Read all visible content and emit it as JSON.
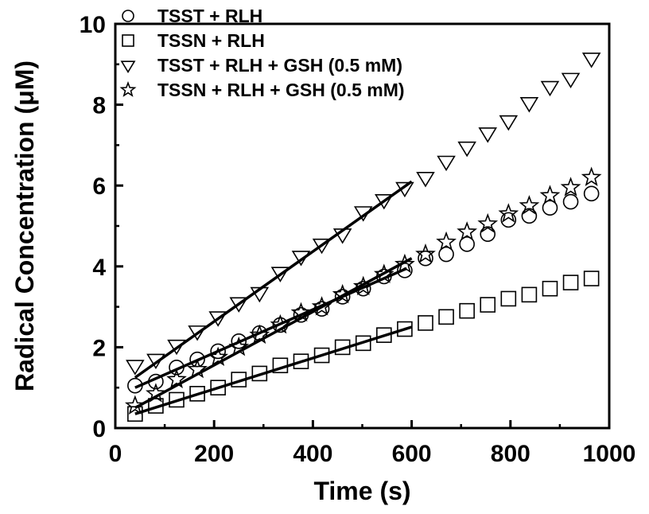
{
  "chart_data": {
    "type": "scatter",
    "title": "",
    "xlabel": "Time (s)",
    "ylabel": "Radical Concentration (μM)",
    "xlim": [
      0,
      1000
    ],
    "ylim": [
      0,
      10
    ],
    "xticks": [
      "0",
      "200",
      "400",
      "600",
      "800",
      "1000"
    ],
    "yticks": [
      "0",
      "2",
      "4",
      "6",
      "8",
      "10"
    ],
    "grid": false,
    "legend_position": "top-left",
    "x": [
      40,
      82,
      124,
      166,
      208,
      250,
      292,
      334,
      376,
      418,
      460,
      502,
      544,
      586,
      628,
      670,
      712,
      754,
      796,
      838,
      880,
      922,
      964
    ],
    "series": [
      {
        "name": "TSST + RLH",
        "marker": "circle",
        "values": [
          1.05,
          1.15,
          1.5,
          1.7,
          1.9,
          2.15,
          2.35,
          2.55,
          2.8,
          2.95,
          3.25,
          3.45,
          3.75,
          3.9,
          4.2,
          4.3,
          4.55,
          4.8,
          5.15,
          5.25,
          5.45,
          5.6,
          5.8
        ],
        "fit": {
          "x": [
            40,
            590
          ],
          "y": [
            1.0,
            3.95
          ]
        }
      },
      {
        "name": "TSSN + RLH",
        "marker": "square",
        "values": [
          0.35,
          0.55,
          0.7,
          0.85,
          1.0,
          1.2,
          1.35,
          1.55,
          1.65,
          1.8,
          2.0,
          2.1,
          2.3,
          2.45,
          2.6,
          2.75,
          2.9,
          3.05,
          3.2,
          3.3,
          3.45,
          3.6,
          3.7
        ],
        "fit": {
          "x": [
            40,
            600
          ],
          "y": [
            0.35,
            2.5
          ]
        }
      },
      {
        "name": "TSST + RLH + GSH (0.5 mM)",
        "marker": "triangle-down",
        "values": [
          1.55,
          1.7,
          2.05,
          2.4,
          2.75,
          3.1,
          3.35,
          3.85,
          4.25,
          4.55,
          4.8,
          5.35,
          5.65,
          5.95,
          6.2,
          6.6,
          6.95,
          7.3,
          7.6,
          8.05,
          8.45,
          8.65,
          9.15
        ],
        "fit": {
          "x": [
            40,
            600
          ],
          "y": [
            1.25,
            6.1
          ]
        }
      },
      {
        "name": "TSSN + RLH + GSH (0.5 mM)",
        "marker": "star",
        "values": [
          0.55,
          0.85,
          1.2,
          1.45,
          1.75,
          2.0,
          2.3,
          2.55,
          2.85,
          3.0,
          3.3,
          3.5,
          3.8,
          4.05,
          4.3,
          4.6,
          4.85,
          5.05,
          5.3,
          5.5,
          5.75,
          5.95,
          6.2
        ],
        "fit": {
          "x": [
            40,
            600
          ],
          "y": [
            0.5,
            4.2
          ]
        }
      }
    ]
  }
}
